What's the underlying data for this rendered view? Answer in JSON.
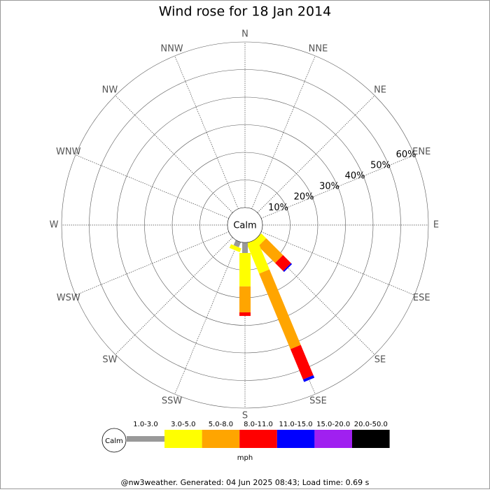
{
  "chart_data": {
    "type": "windrose",
    "title": "Wind rose for 18 Jan 2014",
    "categories": [
      "N",
      "NNE",
      "NE",
      "ENE",
      "E",
      "ESE",
      "SE",
      "SSE",
      "S",
      "SSW",
      "SW",
      "WSW",
      "W",
      "WNW",
      "NW",
      "NNW"
    ],
    "calm_label": "Calm",
    "rlim": [
      0,
      60
    ],
    "rticks": [
      {
        "value": 10,
        "label": "10%"
      },
      {
        "value": 20,
        "label": "20%"
      },
      {
        "value": 30,
        "label": "30%"
      },
      {
        "value": 40,
        "label": "40%"
      },
      {
        "value": 50,
        "label": "50%"
      },
      {
        "value": 60,
        "label": "60%"
      }
    ],
    "series": [
      {
        "name": "1.0-3.0",
        "color": "#999999",
        "values": [
          0,
          0,
          0,
          0,
          0,
          0,
          0,
          0,
          3.8,
          2.0,
          0,
          0,
          0,
          0,
          0,
          0
        ]
      },
      {
        "name": "3.0-5.0",
        "color": "#ffff00",
        "values": [
          0,
          0,
          0,
          0,
          0,
          0,
          2.5,
          11.9,
          12.1,
          1.5,
          0,
          0,
          0,
          0,
          0,
          0
        ]
      },
      {
        "name": "5.0-8.0",
        "color": "#ffa500",
        "values": [
          0,
          0,
          0,
          0,
          0,
          0,
          8.6,
          29.6,
          9.4,
          0,
          0,
          0,
          0,
          0,
          0,
          0
        ]
      },
      {
        "name": "8.0-11.0",
        "color": "#ff0000",
        "values": [
          0,
          0,
          0,
          0,
          0,
          0,
          4.1,
          11.9,
          1.3,
          0,
          0,
          0,
          0,
          0,
          0,
          0
        ]
      },
      {
        "name": "11.0-15.0",
        "color": "#0000ff",
        "values": [
          0,
          0,
          0,
          0,
          0,
          0,
          0.5,
          1.0,
          0,
          0,
          0,
          0,
          0,
          0,
          0,
          0
        ]
      },
      {
        "name": "15.0-20.0",
        "color": "#a020f0",
        "values": [
          0,
          0,
          0,
          0,
          0,
          0,
          0,
          0,
          0,
          0,
          0,
          0,
          0,
          0,
          0,
          0
        ]
      },
      {
        "name": "20.0-50.0",
        "color": "#000000",
        "values": [
          0,
          0,
          0,
          0,
          0,
          0,
          0,
          0,
          0,
          0,
          0,
          0,
          0,
          0,
          0,
          0
        ]
      }
    ],
    "legend_unit": "mph",
    "footer": "@nw3weather. Generated: 04 Jun 2025 08:43; Load time: 0.69 s"
  }
}
